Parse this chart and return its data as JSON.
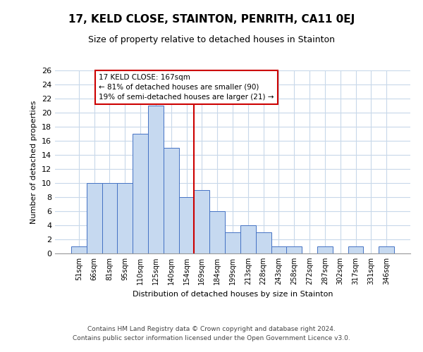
{
  "title": "17, KELD CLOSE, STAINTON, PENRITH, CA11 0EJ",
  "subtitle": "Size of property relative to detached houses in Stainton",
  "xlabel": "Distribution of detached houses by size in Stainton",
  "ylabel": "Number of detached properties",
  "bin_labels": [
    "51sqm",
    "66sqm",
    "81sqm",
    "95sqm",
    "110sqm",
    "125sqm",
    "140sqm",
    "154sqm",
    "169sqm",
    "184sqm",
    "199sqm",
    "213sqm",
    "228sqm",
    "243sqm",
    "258sqm",
    "272sqm",
    "287sqm",
    "302sqm",
    "317sqm",
    "331sqm",
    "346sqm"
  ],
  "bar_heights": [
    1,
    10,
    10,
    10,
    17,
    21,
    15,
    8,
    9,
    6,
    3,
    4,
    3,
    1,
    1,
    0,
    1,
    0,
    1,
    0,
    1
  ],
  "bar_color": "#c6d9f0",
  "bar_edge_color": "#4472c4",
  "vline_x_index": 8,
  "vline_color": "#cc0000",
  "annotation_line1": "17 KELD CLOSE: 167sqm",
  "annotation_line2": "← 81% of detached houses are smaller (90)",
  "annotation_line3": "19% of semi-detached houses are larger (21) →",
  "annotation_box_color": "#cc0000",
  "ylim": [
    0,
    26
  ],
  "yticks": [
    0,
    2,
    4,
    6,
    8,
    10,
    12,
    14,
    16,
    18,
    20,
    22,
    24,
    26
  ],
  "footer_line1": "Contains HM Land Registry data © Crown copyright and database right 2024.",
  "footer_line2": "Contains public sector information licensed under the Open Government Licence v3.0.",
  "background_color": "#ffffff",
  "grid_color": "#c8d8ea",
  "title_fontsize": 11,
  "subtitle_fontsize": 9,
  "ylabel_fontsize": 8,
  "xlabel_fontsize": 8,
  "tick_fontsize": 8,
  "annotation_fontsize": 7.5,
  "footer_fontsize": 6.5
}
